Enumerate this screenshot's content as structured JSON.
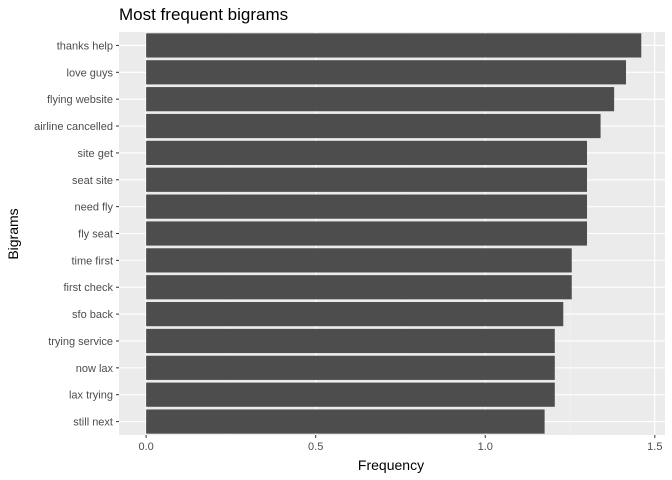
{
  "chart_data": {
    "type": "bar",
    "orientation": "horizontal",
    "title": "Most frequent bigrams",
    "xlabel": "Frequency",
    "ylabel": "Bigrams",
    "xlim": [
      -0.08,
      1.53
    ],
    "xticks": [
      0.0,
      0.5,
      1.0,
      1.5
    ],
    "xtick_labels": [
      "0.0",
      "0.5",
      "1.0",
      "1.5"
    ],
    "grid": true,
    "categories": [
      "thanks help",
      "love guys",
      "flying website",
      "airline cancelled",
      "site get",
      "seat site",
      "need fly",
      "fly seat",
      "time first",
      "first check",
      "sfo back",
      "trying service",
      "now lax",
      "lax trying",
      "still next"
    ],
    "values": [
      1.46,
      1.415,
      1.38,
      1.34,
      1.3,
      1.3,
      1.3,
      1.3,
      1.255,
      1.255,
      1.23,
      1.205,
      1.205,
      1.205,
      1.175
    ],
    "colors": {
      "bar": "#4d4d4d",
      "panel": "#ebebeb",
      "grid_major": "#ffffff",
      "grid_minor": "#f5f5f5",
      "tick_text": "#4d4d4d",
      "tick_mark": "#333333"
    }
  }
}
